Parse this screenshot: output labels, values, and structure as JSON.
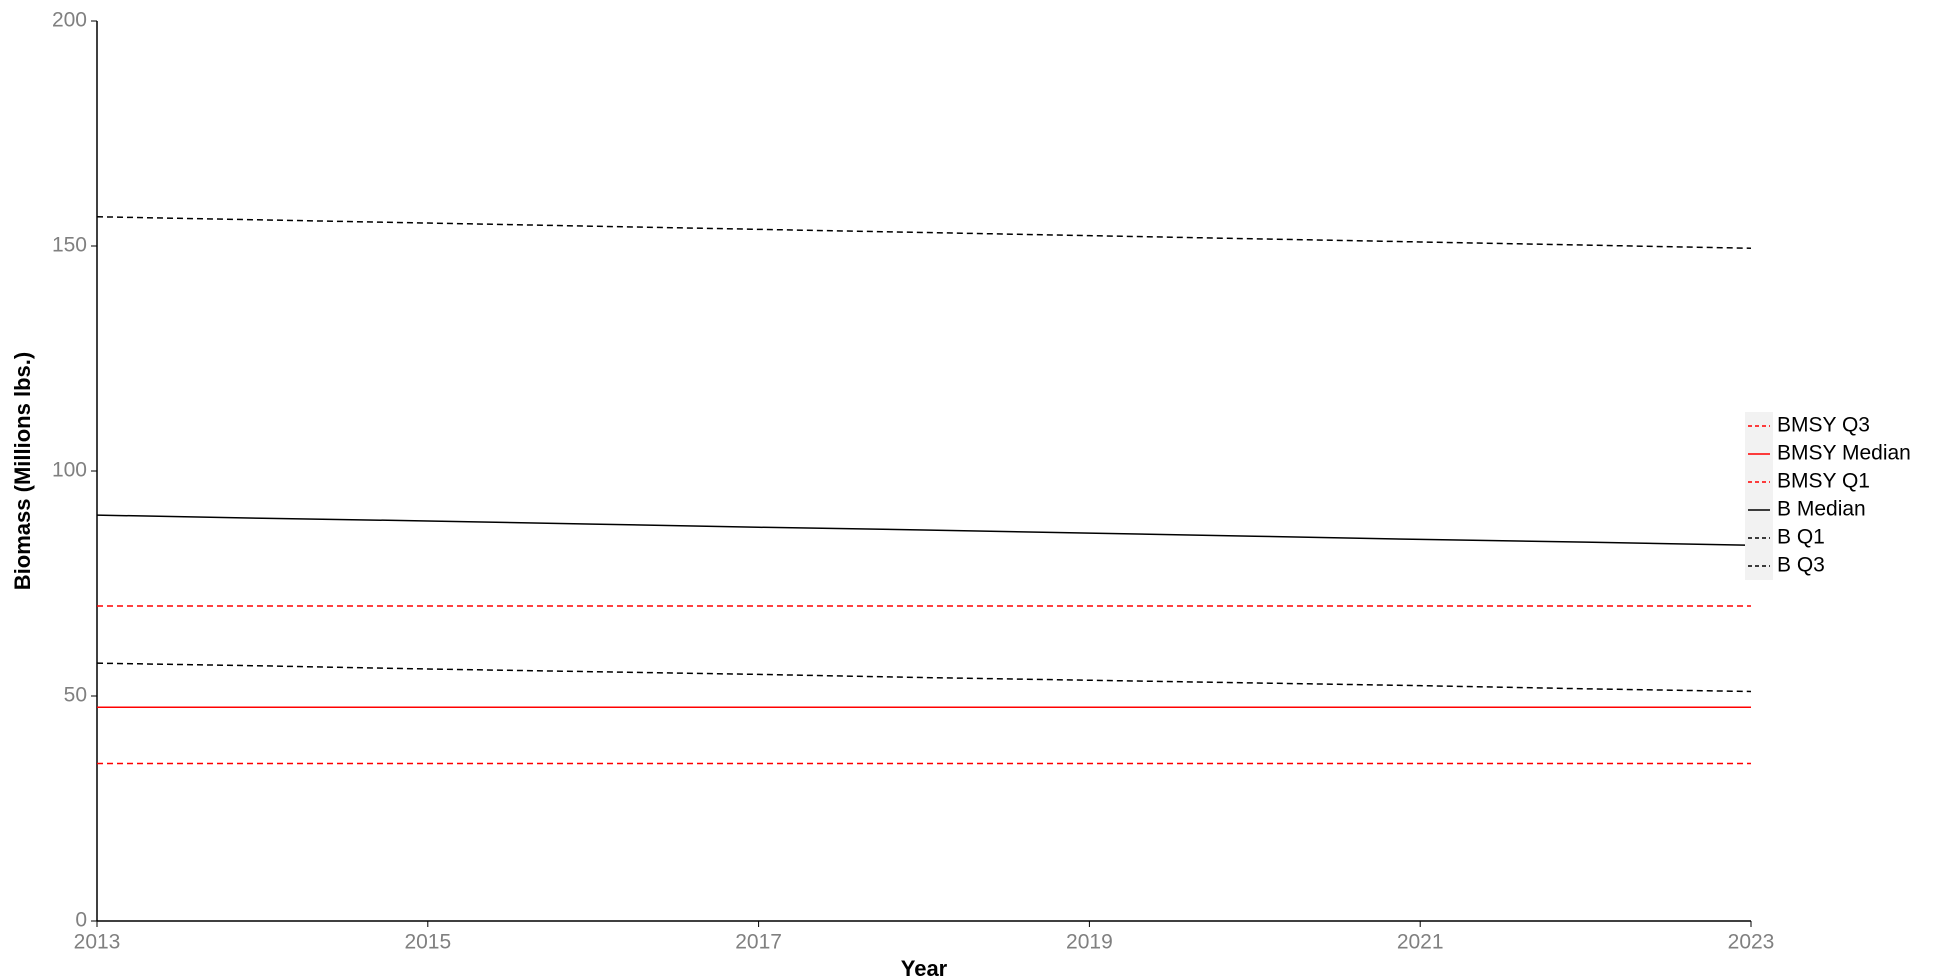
{
  "chart_data": {
    "type": "line",
    "x_label": "Year",
    "y_label": "Biomass (Millions lbs.)",
    "x": [
      2013,
      2014,
      2015,
      2016,
      2017,
      2018,
      2019,
      2020,
      2021,
      2022,
      2023
    ],
    "xlim": [
      2013,
      2023
    ],
    "xticks": [
      2013,
      2015,
      2017,
      2019,
      2021,
      2023
    ],
    "ylim": [
      0,
      200
    ],
    "yticks": [
      0,
      50,
      100,
      150,
      200
    ],
    "legend": "right",
    "series": [
      {
        "name": "BMSY Q3",
        "color": "#ff0000",
        "dashed": true,
        "values": [
          70,
          70,
          70,
          70,
          70,
          70,
          70,
          70,
          70,
          70,
          70
        ]
      },
      {
        "name": "BMSY Median",
        "color": "#ff0000",
        "dashed": false,
        "values": [
          47.5,
          47.5,
          47.5,
          47.5,
          47.5,
          47.5,
          47.5,
          47.5,
          47.5,
          47.5,
          47.5
        ]
      },
      {
        "name": "BMSY Q1",
        "color": "#ff0000",
        "dashed": true,
        "values": [
          35,
          35,
          35,
          35,
          35,
          35,
          35,
          35,
          35,
          35,
          35
        ]
      },
      {
        "name": "B Median",
        "color": "#000000",
        "dashed": false,
        "values": [
          90.2,
          89.5,
          88.9,
          88.2,
          87.5,
          86.9,
          86.2,
          85.5,
          84.8,
          84.2,
          83.5
        ]
      },
      {
        "name": "B Q1",
        "color": "#000000",
        "dashed": true,
        "values": [
          57.3,
          56.7,
          56.0,
          55.4,
          54.8,
          54.1,
          53.5,
          52.9,
          52.3,
          51.6,
          51.0
        ]
      },
      {
        "name": "B Q3",
        "color": "#000000",
        "dashed": true,
        "values": [
          156.5,
          155.8,
          155.1,
          154.4,
          153.7,
          153.0,
          152.3,
          151.6,
          150.9,
          150.2,
          149.5
        ]
      }
    ]
  }
}
